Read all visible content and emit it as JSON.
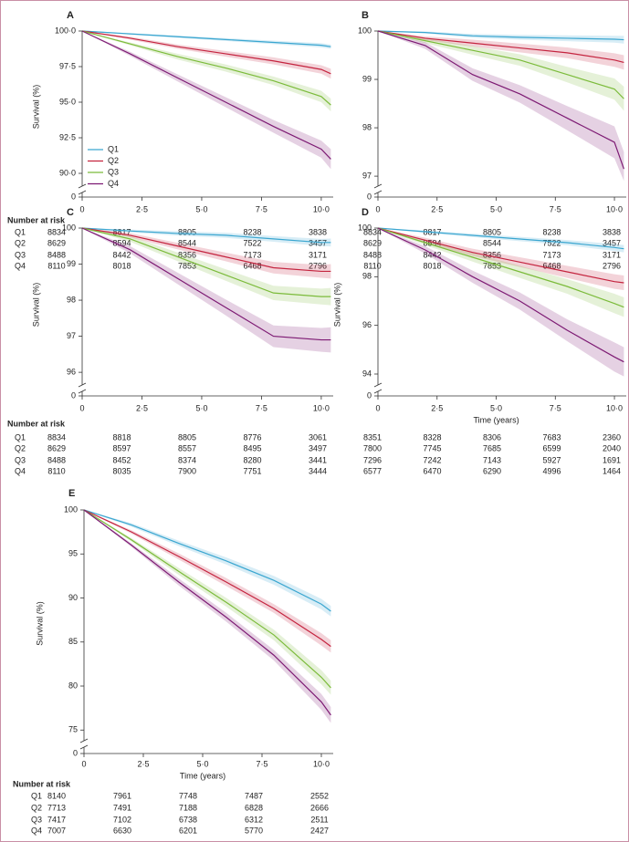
{
  "chart_data": [
    {
      "type": "line",
      "label": "A",
      "y_label": "Survival (%)",
      "x": [
        0,
        2,
        4,
        6,
        8,
        10,
        10.4
      ],
      "xlim": [
        0,
        10.5
      ],
      "xticks": [
        0,
        {
          "value": 2.5,
          "label": "2·5"
        },
        {
          "value": 5,
          "label": "5·0"
        },
        {
          "value": 7.5,
          "label": "7·5"
        },
        {
          "value": 10,
          "label": "10·0"
        }
      ],
      "ylim": [
        89.36,
        100
      ],
      "yticks": [
        {
          "value": 90,
          "label": "90·0"
        },
        {
          "value": 92.5,
          "label": "92·5"
        },
        {
          "value": 95,
          "label": "95·0"
        },
        {
          "value": 97.5,
          "label": "97·5"
        },
        {
          "value": 100,
          "label": "100·0"
        }
      ],
      "ybase": 0,
      "legend": "lower-left",
      "series": [
        {
          "name": "Q1",
          "color": "#3aa6d0",
          "values": [
            100,
            99.8,
            99.6,
            99.4,
            99.2,
            99.0,
            98.9
          ],
          "lower": [
            100,
            99.75,
            99.52,
            99.3,
            99.08,
            98.85,
            98.75
          ],
          "upper": [
            100,
            99.85,
            99.68,
            99.5,
            99.32,
            99.15,
            99.05
          ]
        },
        {
          "name": "Q2",
          "color": "#c4243f",
          "values": [
            100,
            99.5,
            98.9,
            98.4,
            97.9,
            97.3,
            97.0
          ],
          "lower": [
            100,
            99.4,
            98.75,
            98.2,
            97.65,
            97.0,
            96.65
          ],
          "upper": [
            100,
            99.6,
            99.05,
            98.6,
            98.15,
            97.6,
            97.35
          ]
        },
        {
          "name": "Q3",
          "color": "#7bbb3a",
          "values": [
            100,
            99.1,
            98.2,
            97.4,
            96.5,
            95.4,
            94.8
          ],
          "lower": [
            100,
            99.0,
            98.0,
            97.15,
            96.2,
            95.0,
            94.35
          ],
          "upper": [
            100,
            99.2,
            98.4,
            97.65,
            96.8,
            95.8,
            95.25
          ]
        },
        {
          "name": "Q4",
          "color": "#7d1a73",
          "values": [
            100,
            98.4,
            96.7,
            95.0,
            93.3,
            91.7,
            91.0
          ],
          "lower": [
            100,
            98.25,
            96.45,
            94.65,
            92.85,
            91.1,
            90.3
          ],
          "upper": [
            100,
            98.55,
            96.95,
            95.35,
            93.75,
            92.3,
            91.7
          ]
        }
      ],
      "risk_table": {
        "title": "Number at risk",
        "row_labels": [
          "Q1",
          "Q2",
          "Q3",
          "Q4"
        ],
        "rows": [
          [
            8834,
            8817,
            8805,
            8238,
            3838
          ],
          [
            8629,
            8594,
            8544,
            7522,
            3457
          ],
          [
            8488,
            8442,
            8356,
            7173,
            3171
          ],
          [
            8110,
            8018,
            7853,
            6468,
            2796
          ]
        ]
      }
    },
    {
      "type": "line",
      "label": "B",
      "x": [
        0,
        2,
        4,
        6,
        8,
        10,
        10.4
      ],
      "xlim": [
        0,
        10.5
      ],
      "xticks": [
        0,
        {
          "value": 2.5,
          "label": "2·5"
        },
        {
          "value": 5,
          "label": "5·0"
        },
        {
          "value": 7.5,
          "label": "7·5"
        },
        {
          "value": 10,
          "label": "10·0"
        }
      ],
      "ylim": [
        96.87,
        100
      ],
      "yticks": [
        97,
        98,
        99,
        100
      ],
      "ybase": 0,
      "series": [
        {
          "name": "Q1",
          "color": "#3aa6d0",
          "values": [
            100,
            99.97,
            99.9,
            99.87,
            99.85,
            99.83,
            99.82
          ],
          "lower": [
            100,
            99.95,
            99.86,
            99.82,
            99.79,
            99.76,
            99.74
          ],
          "upper": [
            100,
            99.99,
            99.94,
            99.92,
            99.91,
            99.9,
            99.9
          ]
        },
        {
          "name": "Q2",
          "color": "#c4243f",
          "values": [
            100,
            99.85,
            99.75,
            99.65,
            99.55,
            99.4,
            99.35
          ],
          "lower": [
            100,
            99.81,
            99.68,
            99.56,
            99.44,
            99.26,
            99.2
          ],
          "upper": [
            100,
            99.89,
            99.82,
            99.74,
            99.66,
            99.54,
            99.5
          ]
        },
        {
          "name": "Q3",
          "color": "#7bbb3a",
          "values": [
            100,
            99.8,
            99.6,
            99.4,
            99.1,
            98.8,
            98.6
          ],
          "lower": [
            100,
            99.75,
            99.51,
            99.28,
            98.94,
            98.58,
            98.35
          ],
          "upper": [
            100,
            99.85,
            99.69,
            99.52,
            99.26,
            99.02,
            98.85
          ]
        },
        {
          "name": "Q4",
          "color": "#7d1a73",
          "values": [
            100,
            99.7,
            99.1,
            98.7,
            98.2,
            97.7,
            97.15
          ],
          "lower": [
            100,
            99.63,
            98.97,
            98.52,
            97.95,
            97.37,
            96.9
          ],
          "upper": [
            100,
            99.77,
            99.23,
            98.88,
            98.45,
            98.03,
            97.5
          ]
        }
      ],
      "risk_table": {
        "rows": [
          [
            8834,
            8817,
            8805,
            8238,
            3838
          ],
          [
            8629,
            8594,
            8544,
            7522,
            3457
          ],
          [
            8488,
            8442,
            8356,
            7173,
            3171
          ],
          [
            8110,
            8018,
            7853,
            6468,
            2796
          ]
        ]
      }
    },
    {
      "type": "line",
      "label": "C",
      "y_label": "Survival (%)",
      "x": [
        0,
        2,
        4,
        6,
        8,
        10,
        10.4
      ],
      "xlim": [
        0,
        10.5
      ],
      "xticks": [
        0,
        {
          "value": 2.5,
          "label": "2·5"
        },
        {
          "value": 5,
          "label": "5·0"
        },
        {
          "value": 7.5,
          "label": "7·5"
        },
        {
          "value": 10,
          "label": "10·0"
        }
      ],
      "ylim": [
        95.75,
        100
      ],
      "yticks": [
        96,
        97,
        98,
        99,
        100
      ],
      "ybase": 0,
      "series": [
        {
          "name": "Q1",
          "color": "#3aa6d0",
          "values": [
            100,
            99.92,
            99.85,
            99.8,
            99.7,
            99.6,
            99.6
          ],
          "lower": [
            100,
            99.88,
            99.79,
            99.73,
            99.62,
            99.5,
            99.49
          ],
          "upper": [
            100,
            99.96,
            99.91,
            99.87,
            99.78,
            99.7,
            99.71
          ]
        },
        {
          "name": "Q2",
          "color": "#c4243f",
          "values": [
            100,
            99.8,
            99.5,
            99.2,
            98.9,
            98.8,
            98.8
          ],
          "lower": [
            100,
            99.74,
            99.41,
            99.08,
            98.74,
            98.62,
            98.6
          ],
          "upper": [
            100,
            99.86,
            99.59,
            99.32,
            99.06,
            98.98,
            99.0
          ]
        },
        {
          "name": "Q3",
          "color": "#7bbb3a",
          "values": [
            100,
            99.7,
            99.2,
            98.7,
            98.2,
            98.1,
            98.1
          ],
          "lower": [
            100,
            99.62,
            99.08,
            98.54,
            98.0,
            97.88,
            97.86
          ],
          "upper": [
            100,
            99.78,
            99.32,
            98.86,
            98.4,
            98.32,
            98.34
          ]
        },
        {
          "name": "Q4",
          "color": "#7d1a73",
          "values": [
            100,
            99.4,
            98.6,
            97.8,
            97.0,
            96.9,
            96.9
          ],
          "lower": [
            100,
            99.3,
            98.44,
            97.58,
            96.7,
            96.57,
            96.55
          ],
          "upper": [
            100,
            99.5,
            98.76,
            98.02,
            97.3,
            97.23,
            97.25
          ]
        }
      ],
      "risk_table": {
        "title": "Number at risk",
        "row_labels": [
          "Q1",
          "Q2",
          "Q3",
          "Q4"
        ],
        "rows": [
          [
            8834,
            8818,
            8805,
            8776,
            3061
          ],
          [
            8629,
            8597,
            8557,
            8495,
            3497
          ],
          [
            8488,
            8452,
            8374,
            8280,
            3441
          ],
          [
            8110,
            8035,
            7900,
            7751,
            3444
          ]
        ]
      }
    },
    {
      "type": "line",
      "label": "D",
      "y_label": "Survival (%)",
      "x_label": "Time (years)",
      "x": [
        0,
        2,
        4,
        6,
        8,
        10,
        10.4
      ],
      "xlim": [
        0,
        10.5
      ],
      "xticks": [
        0,
        {
          "value": 2.5,
          "label": "2·5"
        },
        {
          "value": 5,
          "label": "5·0"
        },
        {
          "value": 7.5,
          "label": "7·5"
        },
        {
          "value": 10,
          "label": "10·0"
        }
      ],
      "ylim": [
        93.7,
        100
      ],
      "yticks": [
        94,
        96,
        98,
        100
      ],
      "ybase": 0,
      "series": [
        {
          "name": "Q1",
          "color": "#3aa6d0",
          "values": [
            100,
            99.85,
            99.7,
            99.55,
            99.4,
            99.2,
            99.15
          ],
          "lower": [
            100,
            99.8,
            99.63,
            99.46,
            99.29,
            99.06,
            99.0
          ],
          "upper": [
            100,
            99.9,
            99.77,
            99.64,
            99.51,
            99.34,
            99.3
          ]
        },
        {
          "name": "Q2",
          "color": "#c4243f",
          "values": [
            100,
            99.5,
            99.0,
            98.6,
            98.2,
            97.8,
            97.75
          ],
          "lower": [
            100,
            99.4,
            98.85,
            98.4,
            97.95,
            97.5,
            97.45
          ],
          "upper": [
            100,
            99.6,
            99.15,
            98.8,
            98.45,
            98.1,
            98.05
          ]
        },
        {
          "name": "Q3",
          "color": "#7bbb3a",
          "values": [
            100,
            99.4,
            98.8,
            98.2,
            97.6,
            96.9,
            96.75
          ],
          "lower": [
            100,
            99.3,
            98.62,
            97.95,
            97.3,
            96.5,
            96.35
          ],
          "upper": [
            100,
            99.5,
            98.98,
            98.45,
            97.9,
            97.3,
            97.15
          ]
        },
        {
          "name": "Q4",
          "color": "#7d1a73",
          "values": [
            100,
            99.1,
            98.0,
            97.0,
            95.8,
            94.7,
            94.5
          ],
          "lower": [
            100,
            98.95,
            97.75,
            96.65,
            95.35,
            94.1,
            93.9
          ],
          "upper": [
            100,
            99.25,
            98.25,
            97.35,
            96.25,
            95.3,
            95.1
          ]
        }
      ],
      "risk_table": {
        "rows": [
          [
            8351,
            8328,
            8306,
            7683,
            2360
          ],
          [
            7800,
            7745,
            7685,
            6599,
            2040
          ],
          [
            7296,
            7242,
            7143,
            5927,
            1691
          ],
          [
            6577,
            6470,
            6290,
            4996,
            1464
          ]
        ]
      }
    },
    {
      "type": "line",
      "label": "E",
      "y_label": "Survival (%)",
      "x_label": "Time (years)",
      "x": [
        0,
        2,
        4,
        6,
        8,
        10,
        10.4
      ],
      "xlim": [
        0,
        10.5
      ],
      "xticks": [
        0,
        {
          "value": 2.5,
          "label": "2·5"
        },
        {
          "value": 5,
          "label": "5·0"
        },
        {
          "value": 7.5,
          "label": "7·5"
        },
        {
          "value": 10,
          "label": "10·0"
        }
      ],
      "ylim": [
        74.2,
        100
      ],
      "yticks": [
        75,
        80,
        85,
        90,
        95,
        100
      ],
      "ybase": 0,
      "series": [
        {
          "name": "Q1",
          "color": "#3aa6d0",
          "values": [
            100,
            98.3,
            96.2,
            94.2,
            92.0,
            89.3,
            88.5
          ],
          "lower": [
            100,
            98.1,
            95.9,
            93.8,
            91.5,
            88.7,
            87.9
          ],
          "upper": [
            100,
            98.5,
            96.5,
            94.6,
            92.5,
            89.9,
            89.1
          ]
        },
        {
          "name": "Q2",
          "color": "#c4243f",
          "values": [
            100,
            97.5,
            94.7,
            91.8,
            88.8,
            85.3,
            84.5
          ],
          "lower": [
            100,
            97.3,
            94.35,
            91.35,
            88.3,
            84.6,
            83.8
          ],
          "upper": [
            100,
            97.7,
            95.05,
            92.25,
            89.3,
            86.0,
            85.2
          ]
        },
        {
          "name": "Q3",
          "color": "#7bbb3a",
          "values": [
            100,
            96.6,
            93.0,
            89.5,
            85.8,
            81.0,
            79.8
          ],
          "lower": [
            100,
            96.4,
            92.6,
            89.0,
            85.2,
            80.2,
            79.0
          ],
          "upper": [
            100,
            96.8,
            93.4,
            90.0,
            86.4,
            81.8,
            80.6
          ]
        },
        {
          "name": "Q4",
          "color": "#7d1a73",
          "values": [
            100,
            96.0,
            91.8,
            87.8,
            83.5,
            78.2,
            76.7
          ],
          "lower": [
            100,
            95.8,
            91.4,
            87.3,
            82.9,
            77.3,
            75.8
          ],
          "upper": [
            100,
            96.2,
            92.2,
            88.3,
            84.1,
            79.1,
            77.6
          ]
        }
      ],
      "risk_table": {
        "title": "Number at risk",
        "row_labels": [
          "Q1",
          "Q2",
          "Q3",
          "Q4"
        ],
        "rows": [
          [
            8140,
            7961,
            7748,
            7487,
            2552
          ],
          [
            7713,
            7491,
            7188,
            6828,
            2666
          ],
          [
            7417,
            7102,
            6738,
            6312,
            2511
          ],
          [
            7007,
            6630,
            6201,
            5770,
            2427
          ]
        ]
      }
    }
  ]
}
